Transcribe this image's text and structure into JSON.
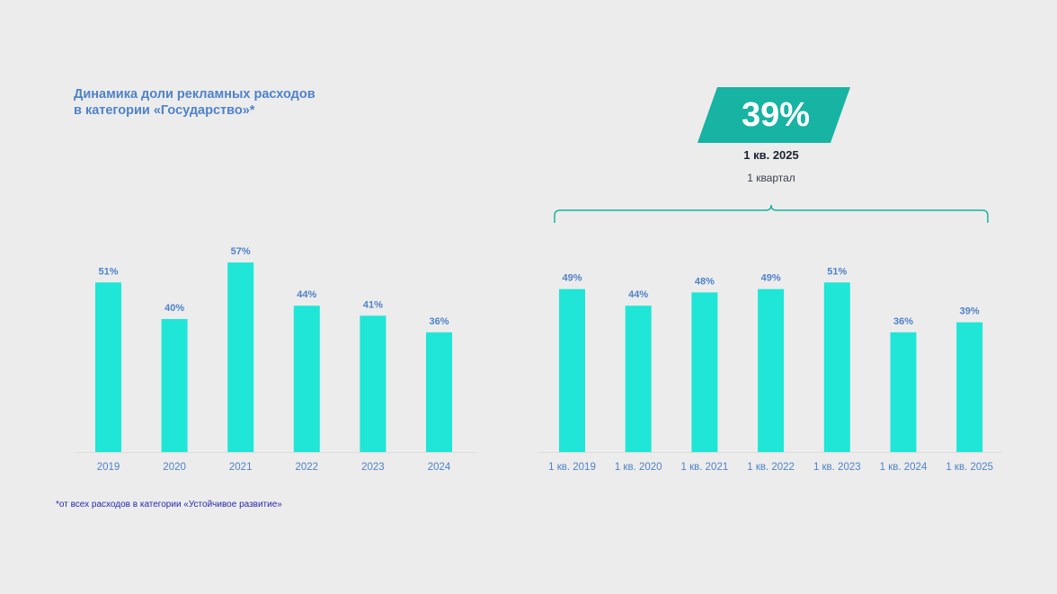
{
  "title": {
    "line1": "Динамика доли рекламных расходов",
    "line2": "в категории «Государство»*"
  },
  "footnote": "*от всех расходов в категории «Устойчивое развитие»",
  "highlight": {
    "value": "39%",
    "period": "1 кв. 2025",
    "caption": "1 квартал",
    "color": "#17b3a3"
  },
  "colors": {
    "bar": "#1fe6d6",
    "label": "#4f82c9",
    "bracket": "#17b3a3"
  },
  "chart_data": [
    {
      "type": "bar",
      "categories": [
        "2019",
        "2020",
        "2021",
        "2022",
        "2023",
        "2024"
      ],
      "values": [
        51,
        40,
        57,
        44,
        41,
        36
      ],
      "labels": [
        "51%",
        "40%",
        "57%",
        "44%",
        "41%",
        "36%"
      ],
      "ylim": [
        0,
        60
      ],
      "grid": false
    },
    {
      "type": "bar",
      "categories": [
        "1 кв. 2019",
        "1 кв. 2020",
        "1 кв. 2021",
        "1 кв. 2022",
        "1 кв. 2023",
        "1 кв. 2024",
        "1 кв. 2025"
      ],
      "values": [
        49,
        44,
        48,
        49,
        51,
        36,
        39
      ],
      "labels": [
        "49%",
        "44%",
        "48%",
        "49%",
        "51%",
        "36%",
        "39%"
      ],
      "ylim": [
        0,
        60
      ],
      "grid": false
    }
  ]
}
